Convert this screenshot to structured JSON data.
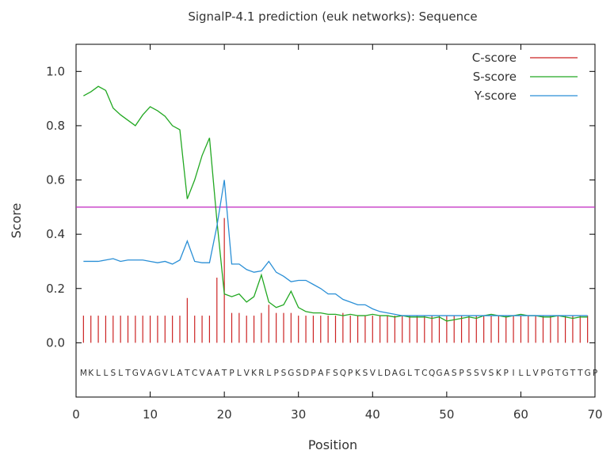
{
  "chart_data": {
    "type": "line",
    "title": "SignalP-4.1 prediction (euk networks): Sequence",
    "xlabel": "Position",
    "ylabel": "Score",
    "xlim": [
      0,
      70
    ],
    "ylim": [
      -0.2,
      1.1
    ],
    "xticks": [
      0,
      10,
      20,
      30,
      40,
      50,
      60,
      70
    ],
    "yticks": [
      0.0,
      0.2,
      0.4,
      0.6,
      0.8,
      1.0
    ],
    "x_tick_labels": [
      "0",
      "10",
      "20",
      "30",
      "40",
      "50",
      "60",
      "70"
    ],
    "y_tick_labels": [
      "0.0",
      "0.2",
      "0.4",
      "0.6",
      "0.8",
      "1.0"
    ],
    "legend_position": "top-right",
    "grid": false,
    "threshold": {
      "y": 0.5,
      "color": "#c026c0"
    },
    "sequence": "MKLLSLTGVAGVLATCVAATPLVKRLPSGSDPAFSQPKSVLDAGLTCQGASPSSVSKPILLVPGTGTTGP",
    "x": [
      1,
      2,
      3,
      4,
      5,
      6,
      7,
      8,
      9,
      10,
      11,
      12,
      13,
      14,
      15,
      16,
      17,
      18,
      19,
      20,
      21,
      22,
      23,
      24,
      25,
      26,
      27,
      28,
      29,
      30,
      31,
      32,
      33,
      34,
      35,
      36,
      37,
      38,
      39,
      40,
      41,
      42,
      43,
      44,
      45,
      46,
      47,
      48,
      49,
      50,
      51,
      52,
      53,
      54,
      55,
      56,
      57,
      58,
      59,
      60,
      61,
      62,
      63,
      64,
      65,
      66,
      67,
      68,
      69
    ],
    "series": [
      {
        "name": "C-score",
        "style": "impulse",
        "color": "#cc2222",
        "values": [
          0.1,
          0.1,
          0.1,
          0.1,
          0.1,
          0.1,
          0.1,
          0.1,
          0.1,
          0.1,
          0.1,
          0.1,
          0.1,
          0.1,
          0.165,
          0.1,
          0.1,
          0.1,
          0.24,
          0.46,
          0.11,
          0.11,
          0.1,
          0.1,
          0.11,
          0.14,
          0.11,
          0.11,
          0.11,
          0.1,
          0.1,
          0.1,
          0.1,
          0.1,
          0.1,
          0.11,
          0.1,
          0.1,
          0.1,
          0.1,
          0.1,
          0.1,
          0.1,
          0.1,
          0.1,
          0.1,
          0.1,
          0.1,
          0.1,
          0.1,
          0.1,
          0.1,
          0.1,
          0.1,
          0.1,
          0.1,
          0.1,
          0.1,
          0.1,
          0.1,
          0.1,
          0.1,
          0.1,
          0.1,
          0.1,
          0.1,
          0.1,
          0.1,
          0.1
        ]
      },
      {
        "name": "S-score",
        "style": "line",
        "color": "#22a822",
        "values": [
          0.91,
          0.925,
          0.945,
          0.93,
          0.865,
          0.84,
          0.82,
          0.8,
          0.84,
          0.87,
          0.855,
          0.835,
          0.8,
          0.785,
          0.53,
          0.6,
          0.69,
          0.755,
          0.45,
          0.18,
          0.17,
          0.18,
          0.15,
          0.17,
          0.25,
          0.15,
          0.13,
          0.14,
          0.19,
          0.13,
          0.115,
          0.11,
          0.11,
          0.105,
          0.105,
          0.1,
          0.105,
          0.1,
          0.1,
          0.105,
          0.1,
          0.1,
          0.095,
          0.1,
          0.095,
          0.095,
          0.095,
          0.09,
          0.095,
          0.08,
          0.085,
          0.09,
          0.095,
          0.09,
          0.1,
          0.105,
          0.1,
          0.095,
          0.1,
          0.105,
          0.1,
          0.1,
          0.095,
          0.095,
          0.1,
          0.095,
          0.09,
          0.095,
          0.095
        ]
      },
      {
        "name": "Y-score",
        "style": "line",
        "color": "#2a8fd6",
        "values": [
          0.3,
          0.3,
          0.3,
          0.305,
          0.31,
          0.3,
          0.305,
          0.305,
          0.305,
          0.3,
          0.295,
          0.3,
          0.29,
          0.305,
          0.375,
          0.3,
          0.295,
          0.295,
          0.43,
          0.6,
          0.29,
          0.29,
          0.27,
          0.26,
          0.265,
          0.3,
          0.26,
          0.245,
          0.225,
          0.23,
          0.23,
          0.215,
          0.2,
          0.18,
          0.18,
          0.16,
          0.15,
          0.14,
          0.14,
          0.125,
          0.115,
          0.11,
          0.105,
          0.1,
          0.1,
          0.1,
          0.1,
          0.1,
          0.1,
          0.1,
          0.1,
          0.1,
          0.1,
          0.1,
          0.1,
          0.1,
          0.1,
          0.1,
          0.1,
          0.1,
          0.1,
          0.1,
          0.1,
          0.1,
          0.1,
          0.1,
          0.1,
          0.1,
          0.1
        ]
      }
    ]
  }
}
